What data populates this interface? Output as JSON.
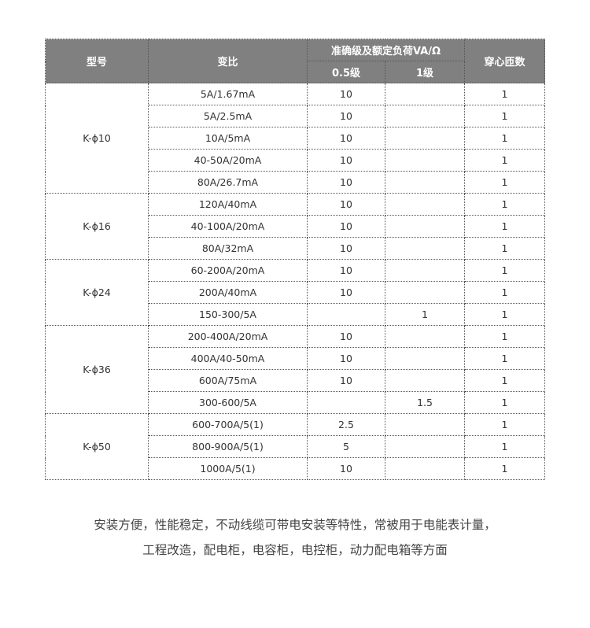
{
  "header": {
    "model": "型号",
    "ratio": "变比",
    "accuracy": "准确级及额定负荷VA/Ω",
    "class05": "0.5级",
    "class1": "1级",
    "turns": "穿心匝数"
  },
  "groups": [
    {
      "model": "K-ϕ10",
      "rows": [
        [
          "5A/1.67mA",
          "10",
          "",
          "1"
        ],
        [
          "5A/2.5mA",
          "10",
          "",
          "1"
        ],
        [
          "10A/5mA",
          "10",
          "",
          "1"
        ],
        [
          "40-50A/20mA",
          "10",
          "",
          "1"
        ],
        [
          "80A/26.7mA",
          "10",
          "",
          "1"
        ]
      ]
    },
    {
      "model": "K-ϕ16",
      "rows": [
        [
          "120A/40mA",
          "10",
          "",
          "1"
        ],
        [
          "40-100A/20mA",
          "10",
          "",
          "1"
        ],
        [
          "80A/32mA",
          "10",
          "",
          "1"
        ]
      ]
    },
    {
      "model": "K-ϕ24",
      "rows": [
        [
          "60-200A/20mA",
          "10",
          "",
          "1"
        ],
        [
          "200A/40mA",
          "10",
          "",
          "1"
        ],
        [
          "150-300/5A",
          "",
          "1",
          "1"
        ]
      ]
    },
    {
      "model": "K-ϕ36",
      "rows": [
        [
          "200-400A/20mA",
          "10",
          "",
          "1"
        ],
        [
          "400A/40-50mA",
          "10",
          "",
          "1"
        ],
        [
          "600A/75mA",
          "10",
          "",
          "1"
        ],
        [
          "300-600/5A",
          "",
          "1.5",
          "1"
        ]
      ]
    },
    {
      "model": "K-ϕ50",
      "rows": [
        [
          "600-700A/5(1)",
          "2.5",
          "",
          "1"
        ],
        [
          "800-900A/5(1)",
          "5",
          "",
          "1"
        ],
        [
          "1000A/5(1)",
          "10",
          "",
          "1"
        ]
      ]
    }
  ],
  "description": [
    "安装方便，性能稳定，不动线缆可带电安装等特性，常被用于电能表计量，",
    "工程改造，配电柜，电容柜，电控柜，动力配电箱等方面"
  ]
}
